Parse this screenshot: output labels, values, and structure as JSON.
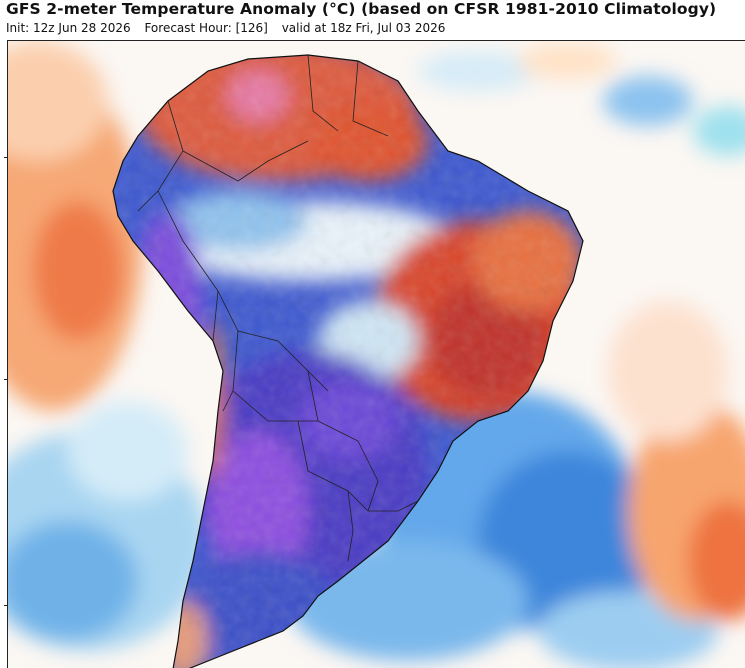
{
  "header": {
    "title": "GFS 2-meter Temperature Anomaly (°C) (based on CFSR 1981-2010 Climatology)",
    "init": "Init: 12z Jun 28 2026",
    "forecast_hour": "Forecast Hour: [126]",
    "valid": "valid at 18z Fri, Jul 03 2026"
  },
  "map": {
    "region": "South America",
    "variable": "2-meter temperature anomaly",
    "colors": {
      "extreme_cold": "#9b4fe0",
      "very_cold": "#5a3fc8",
      "cold": "#3a66d6",
      "cool": "#7fb6ea",
      "slightly_cool": "#cfe8f6",
      "neutral": "#ffffff",
      "slightly_warm": "#ffe1c7",
      "warm": "#f5a15c",
      "hot": "#e0522e",
      "very_hot": "#c32828",
      "extreme_hot": "#e57aa5"
    }
  }
}
